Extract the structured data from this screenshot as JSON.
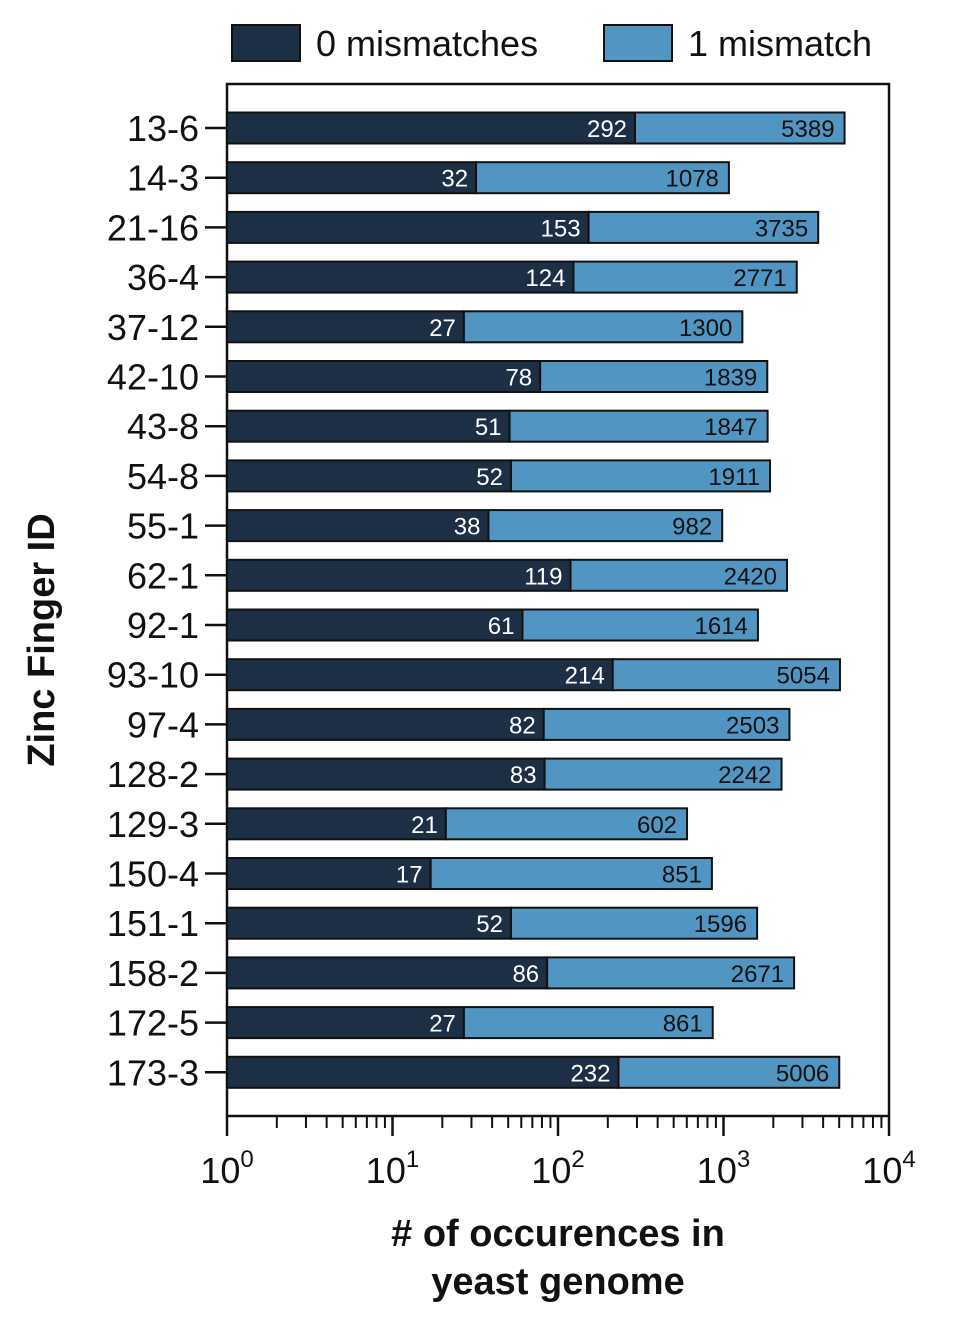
{
  "chart_data": {
    "type": "bar",
    "orientation": "horizontal",
    "stacked": true,
    "x_scale": "log",
    "xlim": [
      1,
      10000
    ],
    "x_ticks": [
      {
        "value": 1,
        "base": "10",
        "exp": "0"
      },
      {
        "value": 10,
        "base": "10",
        "exp": "1"
      },
      {
        "value": 100,
        "base": "10",
        "exp": "2"
      },
      {
        "value": 1000,
        "base": "10",
        "exp": "3"
      },
      {
        "value": 10000,
        "base": "10",
        "exp": "4"
      }
    ],
    "xlabel_lines": [
      "# of occurences in",
      "yeast genome"
    ],
    "ylabel": "Zinc Finger ID",
    "legend_position": "top",
    "grid": false,
    "highlight_category": "42-10",
    "highlight_color": "#c72a7e",
    "categories": [
      "13-6",
      "14-3",
      "21-16",
      "36-4",
      "37-12",
      "42-10",
      "43-8",
      "54-8",
      "55-1",
      "62-1",
      "92-1",
      "93-10",
      "97-4",
      "128-2",
      "129-3",
      "150-4",
      "151-1",
      "158-2",
      "172-5",
      "173-3"
    ],
    "series": [
      {
        "name": "0 mismatches",
        "color": "#1c2f45",
        "label_color": "#ffffff",
        "values": [
          292,
          32,
          153,
          124,
          27,
          78,
          51,
          52,
          38,
          119,
          61,
          214,
          82,
          83,
          21,
          17,
          52,
          86,
          27,
          232
        ]
      },
      {
        "name": "1 mismatch",
        "color": "#5196c2",
        "label_color": "#111111",
        "values": [
          5389,
          1078,
          3735,
          2771,
          1300,
          1839,
          1847,
          1911,
          982,
          2420,
          1614,
          5054,
          2503,
          2242,
          602,
          851,
          1596,
          2671,
          861,
          5006
        ]
      }
    ]
  }
}
